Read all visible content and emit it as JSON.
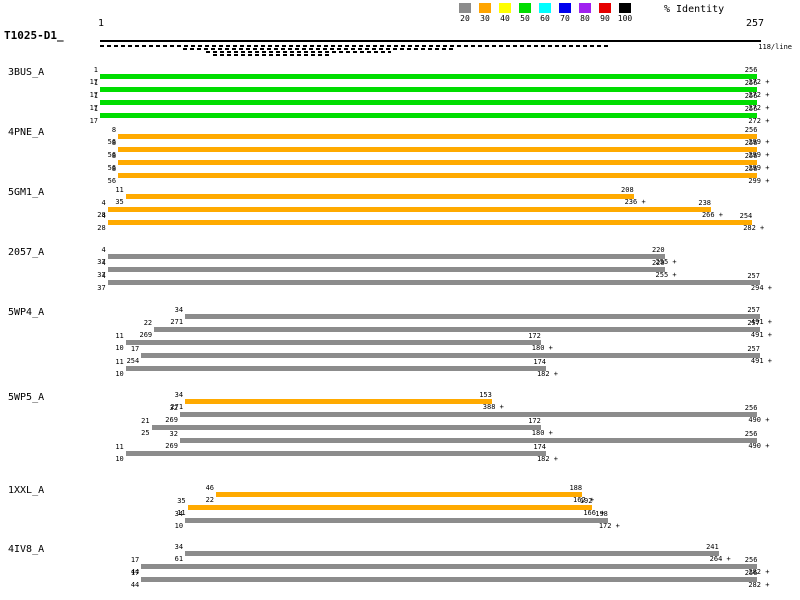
{
  "legend": {
    "title": "% Identity",
    "bins": [
      {
        "label": "20",
        "color": "#8c8c8c"
      },
      {
        "label": "30",
        "color": "#ffa500"
      },
      {
        "label": "40",
        "color": "#ffff00"
      },
      {
        "label": "50",
        "color": "#00dd00"
      },
      {
        "label": "60",
        "color": "#00ffff"
      },
      {
        "label": "70",
        "color": "#0000ee"
      },
      {
        "label": "80",
        "color": "#a020f0"
      },
      {
        "label": "90",
        "color": "#e60000"
      },
      {
        "label": "100",
        "color": "#000000"
      }
    ]
  },
  "query": {
    "label": "T1025-D1_",
    "start_label": "1",
    "end_label": "257",
    "per_line_label": "118/line"
  },
  "chart_data": {
    "type": "alignment-coverage",
    "x_range": [
      1,
      257
    ],
    "bar_colors": {
      "gray": "#8c8c8c",
      "orange": "#ffaa00",
      "green": "#00dd00"
    },
    "coverage_rows": [
      {
        "start": 1,
        "end": 198
      },
      {
        "start": 33,
        "end": 139
      },
      {
        "start": 42,
        "end": 114
      },
      {
        "start": 45,
        "end": 91
      }
    ],
    "hits": [
      {
        "id": "3BUS_A",
        "alignments": [
          {
            "q_start": 1,
            "q_end": 256,
            "h_start": 17,
            "h_end": 272,
            "strand": "+",
            "color": "green"
          },
          {
            "q_start": 1,
            "q_end": 256,
            "h_start": 17,
            "h_end": 272,
            "strand": "+",
            "color": "green"
          },
          {
            "q_start": 1,
            "q_end": 256,
            "h_start": 17,
            "h_end": 272,
            "strand": "+",
            "color": "green"
          },
          {
            "q_start": 1,
            "q_end": 256,
            "h_start": 17,
            "h_end": 272,
            "strand": "+",
            "color": "green"
          }
        ]
      },
      {
        "id": "4PNE_A",
        "alignments": [
          {
            "q_start": 8,
            "q_end": 256,
            "h_start": 56,
            "h_end": 299,
            "strand": "+",
            "color": "orange"
          },
          {
            "q_start": 8,
            "q_end": 256,
            "h_start": 56,
            "h_end": 299,
            "strand": "+",
            "color": "orange"
          },
          {
            "q_start": 8,
            "q_end": 256,
            "h_start": 56,
            "h_end": 299,
            "strand": "+",
            "color": "orange"
          },
          {
            "q_start": 8,
            "q_end": 256,
            "h_start": 56,
            "h_end": 299,
            "strand": "+",
            "color": "orange"
          }
        ]
      },
      {
        "id": "5GM1_A",
        "alignments": [
          {
            "q_start": 11,
            "q_end": 208,
            "h_start": 35,
            "h_end": 236,
            "strand": "+",
            "color": "orange"
          },
          {
            "q_start": 4,
            "q_end": 238,
            "h_start": 28,
            "h_end": 266,
            "strand": "+",
            "color": "orange"
          },
          {
            "q_start": 4,
            "q_end": 254,
            "h_start": 28,
            "h_end": 282,
            "strand": "+",
            "color": "orange"
          }
        ]
      },
      {
        "id": "2057_A",
        "alignments": [
          {
            "q_start": 4,
            "q_end": 220,
            "h_start": 37,
            "h_end": 255,
            "strand": "+",
            "color": "gray"
          },
          {
            "q_start": 4,
            "q_end": 220,
            "h_start": 37,
            "h_end": 255,
            "strand": "+",
            "color": "gray"
          },
          {
            "q_start": 4,
            "q_end": 257,
            "h_start": 37,
            "h_end": 294,
            "strand": "+",
            "color": "gray"
          }
        ]
      },
      {
        "id": "5WP4_A",
        "alignments": [
          {
            "q_start": 34,
            "q_end": 257,
            "h_start": 271,
            "h_end": 491,
            "strand": "+",
            "color": "gray"
          },
          {
            "q_start": 22,
            "q_end": 257,
            "h_start": 269,
            "h_end": 491,
            "strand": "+",
            "color": "gray"
          },
          {
            "q_start": 11,
            "q_end": 172,
            "h_start": 10,
            "h_end": 180,
            "strand": "+",
            "color": "gray"
          },
          {
            "q_start": 17,
            "q_end": 257,
            "h_start": 254,
            "h_end": 491,
            "strand": "+",
            "color": "gray"
          },
          {
            "q_start": 11,
            "q_end": 174,
            "h_start": 10,
            "h_end": 182,
            "strand": "+",
            "color": "gray"
          }
        ]
      },
      {
        "id": "5WP5_A",
        "alignments": [
          {
            "q_start": 34,
            "q_end": 153,
            "h_start": 271,
            "h_end": 388,
            "strand": "+",
            "color": "orange"
          },
          {
            "q_start": 32,
            "q_end": 256,
            "h_start": 269,
            "h_end": 490,
            "strand": "+",
            "color": "gray"
          },
          {
            "q_start": 21,
            "q_end": 172,
            "h_start": 25,
            "h_end": 180,
            "strand": "+",
            "color": "gray"
          },
          {
            "q_start": 32,
            "q_end": 256,
            "h_start": 269,
            "h_end": 490,
            "strand": "+",
            "color": "gray"
          },
          {
            "q_start": 11,
            "q_end": 174,
            "h_start": 10,
            "h_end": 182,
            "strand": "+",
            "color": "gray"
          }
        ]
      },
      {
        "id": "1XXL_A",
        "alignments": [
          {
            "q_start": 46,
            "q_end": 188,
            "h_start": 22,
            "h_end": 162,
            "strand": "+",
            "color": "orange"
          },
          {
            "q_start": 35,
            "q_end": 192,
            "h_start": 11,
            "h_end": 166,
            "strand": "+",
            "color": "orange"
          },
          {
            "q_start": 34,
            "q_end": 198,
            "h_start": 10,
            "h_end": 172,
            "strand": "+",
            "color": "gray"
          }
        ]
      },
      {
        "id": "4IV8_A",
        "alignments": [
          {
            "q_start": 34,
            "q_end": 241,
            "h_start": 61,
            "h_end": 264,
            "strand": "+",
            "color": "gray"
          },
          {
            "q_start": 17,
            "q_end": 256,
            "h_start": 44,
            "h_end": 282,
            "strand": "+",
            "color": "gray"
          },
          {
            "q_start": 17,
            "q_end": 256,
            "h_start": 44,
            "h_end": 282,
            "strand": "+",
            "color": "gray"
          }
        ]
      }
    ]
  }
}
